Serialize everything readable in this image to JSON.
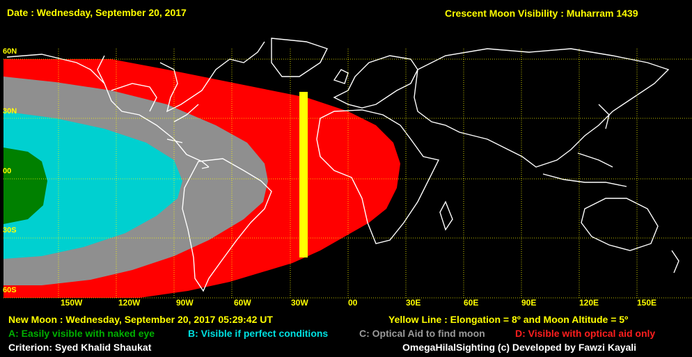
{
  "header": {
    "date": "Date : Wednesday, September 20, 2017",
    "title": "Crescent Moon Visibility : Muharram  1439"
  },
  "map": {
    "lat_labels": [
      "60N",
      "30N",
      "00",
      "30S",
      "60S"
    ],
    "lon_labels": [
      "150W",
      "120W",
      "90W",
      "60W",
      "30W",
      "00",
      "30E",
      "60E",
      "90E",
      "120E",
      "150E"
    ],
    "colors": {
      "naked_eye": "#008000",
      "perfect_conditions": "#00d0d0",
      "optical_aid_find": "#8f8f8f",
      "optical_aid_only": "#ff0000",
      "yellow_line": "#ffff00",
      "grid": "#ffff00",
      "coast": "#ffffff"
    }
  },
  "footer": {
    "new_moon": "New Moon : Wednesday, September 20, 2017  05:29:42  UT",
    "yellow_line": "Yellow Line : Elongation = 8º  and Moon Altitude = 5º",
    "legend_a": "A: Easily visible with naked eye",
    "legend_b": "B: Visible if perfect conditions",
    "legend_c": "C: Optical Aid to find moon",
    "legend_d": "D: Visible with optical aid only",
    "criterion": "Criterion: Syed Khalid Shaukat",
    "credit": "OmegaHilalSighting  (c)  Developed by Fawzi Kayali"
  }
}
